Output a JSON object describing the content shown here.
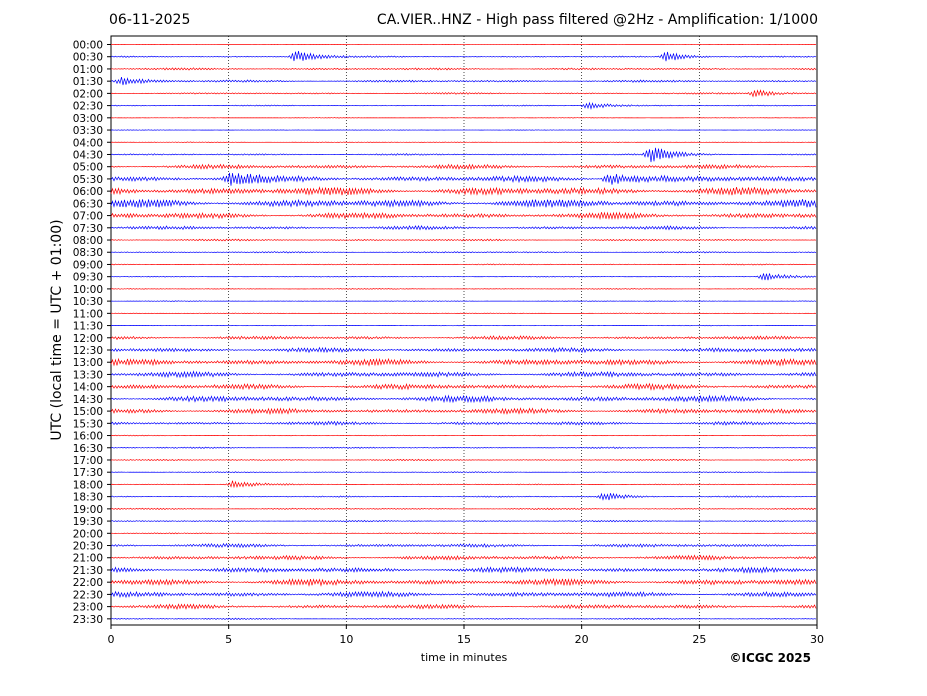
{
  "chart_data": {
    "type": "line",
    "date": "06-11-2025",
    "title": "CA.VIER..HNZ - High pass filtered @2Hz - Amplification: 1/1000",
    "xlabel": "time in minutes",
    "ylabel": "UTC (local time = UTC + 01:00)",
    "xlim": [
      0,
      30
    ],
    "xticks": [
      0,
      5,
      10,
      15,
      20,
      25,
      30
    ],
    "row_labels": [
      "00:00",
      "00:30",
      "01:00",
      "01:30",
      "02:00",
      "02:30",
      "03:00",
      "03:30",
      "04:00",
      "04:30",
      "05:00",
      "05:30",
      "06:00",
      "06:30",
      "07:00",
      "07:30",
      "08:00",
      "08:30",
      "09:00",
      "09:30",
      "10:00",
      "10:30",
      "11:00",
      "11:30",
      "12:00",
      "12:30",
      "13:00",
      "13:30",
      "14:00",
      "14:30",
      "15:00",
      "15:30",
      "16:00",
      "16:30",
      "17:00",
      "17:30",
      "18:00",
      "18:30",
      "19:00",
      "19:30",
      "20:00",
      "20:30",
      "21:00",
      "21:30",
      "22:00",
      "22:30",
      "23:00",
      "23:30"
    ],
    "row_colors": [
      "#ff0000",
      "#0000ff"
    ],
    "noise_level": [
      0.2,
      0.8,
      1.2,
      1.3,
      0.9,
      0.6,
      0.3,
      0.3,
      0.4,
      1.0,
      2.5,
      3.5,
      4.5,
      4.5,
      3.5,
      2.0,
      1.0,
      0.8,
      0.6,
      0.5,
      0.5,
      0.4,
      0.4,
      0.4,
      2.0,
      2.5,
      3.5,
      3.0,
      3.0,
      3.5,
      3.0,
      2.0,
      0.5,
      0.8,
      0.8,
      0.6,
      0.6,
      0.8,
      0.8,
      0.8,
      0.6,
      2.0,
      2.5,
      3.0,
      3.5,
      3.0,
      2.5,
      0.8
    ],
    "events": [
      {
        "row": "00:30",
        "minute": 7.9,
        "amplitude": 6
      },
      {
        "row": "00:30",
        "minute": 23.6,
        "amplitude": 5
      },
      {
        "row": "01:30",
        "minute": 0.5,
        "amplitude": 4
      },
      {
        "row": "02:00",
        "minute": 27.4,
        "amplitude": 4
      },
      {
        "row": "02:30",
        "minute": 20.3,
        "amplitude": 4
      },
      {
        "row": "04:30",
        "minute": 23.0,
        "amplitude": 8
      },
      {
        "row": "05:30",
        "minute": 5.1,
        "amplitude": 6
      },
      {
        "row": "05:30",
        "minute": 21.2,
        "amplitude": 7
      },
      {
        "row": "09:30",
        "minute": 27.8,
        "amplitude": 4
      },
      {
        "row": "18:00",
        "minute": 5.2,
        "amplitude": 4
      },
      {
        "row": "18:30",
        "minute": 21.0,
        "amplitude": 4
      }
    ]
  },
  "copyright": "©ICGC 2025"
}
